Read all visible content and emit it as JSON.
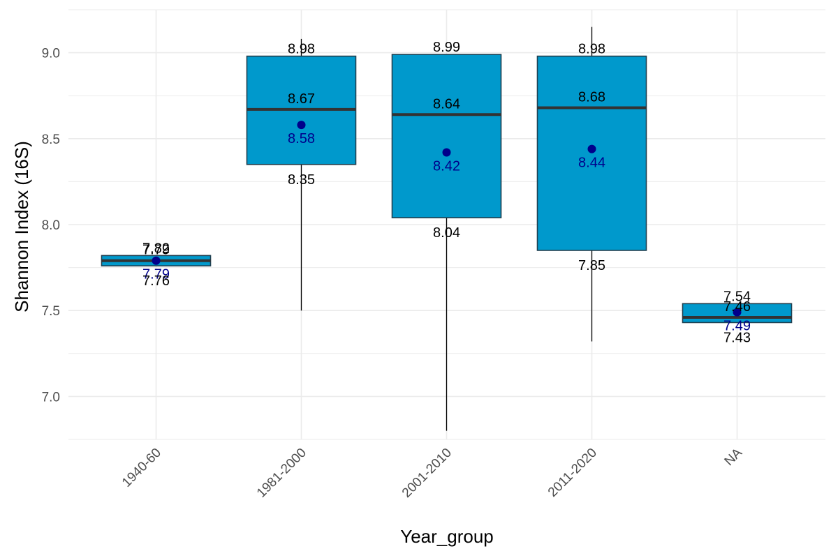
{
  "chart_data": {
    "type": "box",
    "xlabel": "Year_group",
    "ylabel": "Shannon Index (16S)",
    "ylim": [
      6.75,
      9.25
    ],
    "yticks": [
      "7.0",
      "7.5",
      "8.0",
      "8.5",
      "9.0"
    ],
    "grid": true,
    "colors": {
      "box_fill": "#0099cc",
      "box_stroke": "#1f3f4f",
      "mean_point": "#00008b",
      "grid": "#ebebeb"
    },
    "categories": [
      "1940-60",
      "1981-2000",
      "2001-2010",
      "2011-2020",
      "NA"
    ],
    "boxes": [
      {
        "category": "1940-60",
        "whisker_low": 7.76,
        "q1": 7.76,
        "median": 7.79,
        "q3": 7.82,
        "whisker_high": 7.82,
        "mean": 7.79,
        "labels": {
          "q3": "7.82",
          "median": "7.79",
          "mean": "7.79",
          "q1": "7.76"
        }
      },
      {
        "category": "1981-2000",
        "whisker_low": 7.5,
        "q1": 8.35,
        "median": 8.67,
        "q3": 8.98,
        "whisker_high": 9.08,
        "mean": 8.58,
        "labels": {
          "q3": "8.98",
          "median": "8.67",
          "mean": "8.58",
          "q1": "8.35"
        }
      },
      {
        "category": "2001-2010",
        "whisker_low": 6.8,
        "q1": 8.04,
        "median": 8.64,
        "q3": 8.99,
        "whisker_high": 8.99,
        "mean": 8.42,
        "labels": {
          "q3": "8.99",
          "median": "8.64",
          "mean": "8.42",
          "q1": "8.04"
        }
      },
      {
        "category": "2011-2020",
        "whisker_low": 7.32,
        "q1": 7.85,
        "median": 8.68,
        "q3": 8.98,
        "whisker_high": 9.15,
        "mean": 8.44,
        "labels": {
          "q3": "8.98",
          "median": "8.68",
          "mean": "8.44",
          "q1": "7.85"
        }
      },
      {
        "category": "NA",
        "whisker_low": 7.43,
        "q1": 7.43,
        "median": 7.46,
        "q3": 7.54,
        "whisker_high": 7.54,
        "mean": 7.49,
        "labels": {
          "q3": "7.54",
          "median": "7.46",
          "mean": "7.49",
          "q1": "7.43"
        }
      }
    ]
  }
}
